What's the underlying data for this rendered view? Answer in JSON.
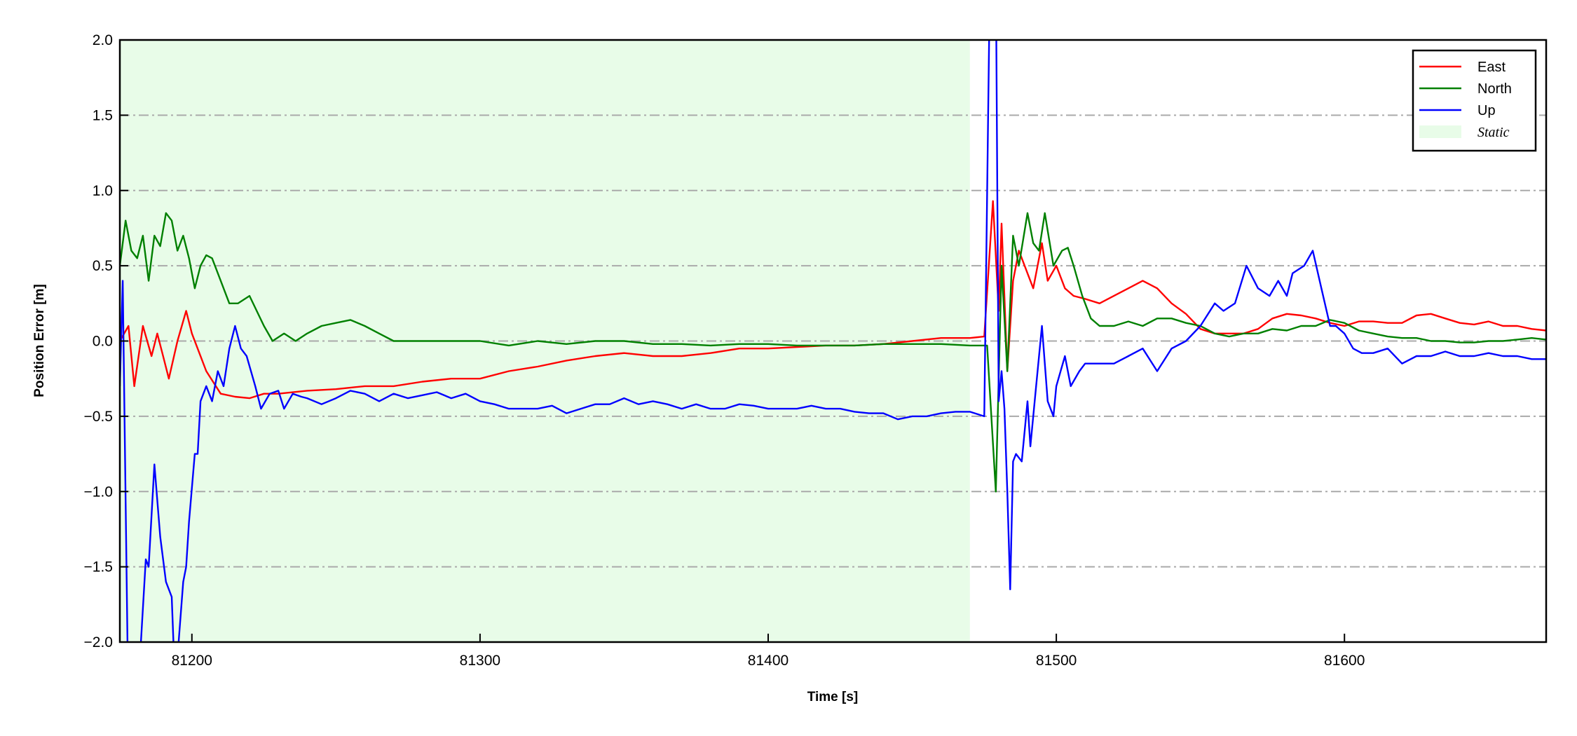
{
  "chart_data": {
    "type": "line",
    "xlabel": "Time [s]",
    "ylabel": "Position Error [m]",
    "xlim": [
      81175,
      81670
    ],
    "ylim": [
      -2.0,
      2.0
    ],
    "xticks": [
      81200,
      81300,
      81400,
      81500,
      81600
    ],
    "xtick_labels": [
      "81200",
      "81300",
      "81400",
      "81500",
      "81600"
    ],
    "yticks": [
      -2.0,
      -1.5,
      -1.0,
      -0.5,
      0.0,
      0.5,
      1.0,
      1.5,
      2.0
    ],
    "ytick_labels": [
      "−2.0",
      "−1.5",
      "−1.0",
      "−0.5",
      "0.0",
      "0.5",
      "1.0",
      "1.5",
      "2.0"
    ],
    "grid": "horizontal dash-dot",
    "legend_position": "top-right",
    "shaded_region": {
      "name": "Static",
      "x_start": 81175,
      "x_end": 81470,
      "color": "#e8fce8"
    },
    "series": [
      {
        "name": "East",
        "color": "#ff0000",
        "x": [
          81175,
          81178,
          81180,
          81183,
          81186,
          81188,
          81190,
          81192,
          81195,
          81198,
          81200,
          81205,
          81210,
          81215,
          81220,
          81225,
          81230,
          81240,
          81250,
          81260,
          81270,
          81280,
          81290,
          81300,
          81310,
          81320,
          81330,
          81340,
          81350,
          81360,
          81370,
          81380,
          81390,
          81400,
          81410,
          81420,
          81430,
          81440,
          81450,
          81460,
          81470,
          81475,
          81478,
          81480,
          81481,
          81483,
          81485,
          81487,
          81490,
          81492,
          81495,
          81497,
          81500,
          81503,
          81506,
          81510,
          81515,
          81520,
          81525,
          81530,
          81535,
          81540,
          81545,
          81550,
          81555,
          81560,
          81565,
          81570,
          81575,
          81580,
          81585,
          81590,
          81595,
          81600,
          81605,
          81610,
          81615,
          81620,
          81625,
          81630,
          81635,
          81640,
          81645,
          81650,
          81655,
          81660,
          81665,
          81670
        ],
        "y": [
          0.0,
          0.1,
          -0.3,
          0.1,
          -0.1,
          0.05,
          -0.1,
          -0.25,
          0.0,
          0.2,
          0.05,
          -0.2,
          -0.35,
          -0.37,
          -0.38,
          -0.35,
          -0.35,
          -0.33,
          -0.32,
          -0.3,
          -0.3,
          -0.27,
          -0.25,
          -0.25,
          -0.2,
          -0.17,
          -0.13,
          -0.1,
          -0.08,
          -0.1,
          -0.1,
          -0.08,
          -0.05,
          -0.05,
          -0.04,
          -0.03,
          -0.03,
          -0.02,
          0.0,
          0.02,
          0.02,
          0.03,
          0.93,
          0.2,
          0.78,
          -0.2,
          0.4,
          0.6,
          0.45,
          0.35,
          0.65,
          0.4,
          0.5,
          0.35,
          0.3,
          0.28,
          0.25,
          0.3,
          0.35,
          0.4,
          0.35,
          0.25,
          0.18,
          0.08,
          0.05,
          0.05,
          0.05,
          0.08,
          0.15,
          0.18,
          0.17,
          0.15,
          0.12,
          0.1,
          0.13,
          0.13,
          0.12,
          0.12,
          0.17,
          0.18,
          0.15,
          0.12,
          0.11,
          0.13,
          0.1,
          0.1,
          0.08,
          0.07
        ]
      },
      {
        "name": "North",
        "color": "#008000",
        "x": [
          81175,
          81177,
          81179,
          81181,
          81183,
          81185,
          81187,
          81189,
          81191,
          81193,
          81195,
          81197,
          81199,
          81201,
          81203,
          81205,
          81207,
          81210,
          81213,
          81216,
          81220,
          81225,
          81228,
          81232,
          81236,
          81240,
          81245,
          81250,
          81255,
          81260,
          81265,
          81270,
          81280,
          81290,
          81300,
          81310,
          81320,
          81330,
          81340,
          81350,
          81360,
          81370,
          81380,
          81390,
          81400,
          81410,
          81420,
          81430,
          81440,
          81450,
          81460,
          81470,
          81476,
          81479,
          81481,
          81483,
          81485,
          81487,
          81490,
          81492,
          81494,
          81496,
          81499,
          81502,
          81504,
          81506,
          81509,
          81512,
          81515,
          81520,
          81525,
          81530,
          81535,
          81540,
          81545,
          81550,
          81555,
          81560,
          81565,
          81570,
          81575,
          81580,
          81585,
          81590,
          81595,
          81600,
          81605,
          81610,
          81615,
          81620,
          81625,
          81630,
          81635,
          81640,
          81645,
          81650,
          81655,
          81660,
          81665,
          81670
        ],
        "y": [
          0.5,
          0.8,
          0.6,
          0.55,
          0.7,
          0.4,
          0.7,
          0.63,
          0.85,
          0.8,
          0.6,
          0.7,
          0.55,
          0.35,
          0.5,
          0.57,
          0.55,
          0.4,
          0.25,
          0.25,
          0.3,
          0.1,
          0.0,
          0.05,
          0.0,
          0.05,
          0.1,
          0.12,
          0.14,
          0.1,
          0.05,
          0.0,
          0.0,
          0.0,
          0.0,
          -0.03,
          0.0,
          -0.02,
          0.0,
          0.0,
          -0.02,
          -0.02,
          -0.03,
          -0.02,
          -0.02,
          -0.03,
          -0.03,
          -0.03,
          -0.02,
          -0.02,
          -0.02,
          -0.03,
          -0.03,
          -1.0,
          0.5,
          -0.2,
          0.7,
          0.5,
          0.85,
          0.65,
          0.6,
          0.85,
          0.5,
          0.6,
          0.62,
          0.5,
          0.3,
          0.15,
          0.1,
          0.1,
          0.13,
          0.1,
          0.15,
          0.15,
          0.12,
          0.1,
          0.05,
          0.03,
          0.05,
          0.05,
          0.08,
          0.07,
          0.1,
          0.1,
          0.14,
          0.12,
          0.07,
          0.05,
          0.03,
          0.02,
          0.02,
          0.0,
          0.0,
          -0.01,
          -0.01,
          0.0,
          0.0,
          0.01,
          0.02,
          0.01
        ]
      },
      {
        "name": "Up",
        "color": "#0000ff",
        "x": [
          81175,
          81176,
          81178,
          81181,
          81182,
          81184,
          81185,
          81187,
          81189,
          81191,
          81193,
          81194,
          81195,
          81197,
          81198,
          81199,
          81201,
          81202,
          81203,
          81205,
          81207,
          81209,
          81211,
          81213,
          81215,
          81217,
          81219,
          81222,
          81224,
          81227,
          81230,
          81232,
          81235,
          81238,
          81240,
          81245,
          81250,
          81255,
          81260,
          81265,
          81270,
          81275,
          81280,
          81285,
          81290,
          81295,
          81300,
          81305,
          81310,
          81315,
          81320,
          81325,
          81330,
          81335,
          81340,
          81345,
          81350,
          81355,
          81360,
          81365,
          81370,
          81375,
          81380,
          81385,
          81390,
          81395,
          81400,
          81405,
          81410,
          81415,
          81420,
          81425,
          81430,
          81435,
          81440,
          81445,
          81450,
          81455,
          81460,
          81465,
          81470,
          81475,
          81477,
          81479,
          81480,
          81481,
          81482,
          81483,
          81484,
          81485,
          81486,
          81488,
          81490,
          81491,
          81493,
          81495,
          81497,
          81499,
          81500,
          81503,
          81505,
          81508,
          81510,
          81515,
          81520,
          81525,
          81530,
          81535,
          81540,
          81545,
          81550,
          81555,
          81558,
          81562,
          81566,
          81570,
          81574,
          81577,
          81580,
          81582,
          81586,
          81589,
          81592,
          81595,
          81597,
          81600,
          81603,
          81606,
          81610,
          81615,
          81620,
          81625,
          81630,
          81635,
          81640,
          81645,
          81650,
          81655,
          81660,
          81665,
          81670
        ],
        "y": [
          -0.3,
          0.4,
          -2.5,
          -2.5,
          -2.1,
          -1.45,
          -1.5,
          -0.82,
          -1.3,
          -1.6,
          -1.7,
          -2.2,
          -2.1,
          -1.6,
          -1.5,
          -1.2,
          -0.75,
          -0.75,
          -0.4,
          -0.3,
          -0.4,
          -0.2,
          -0.3,
          -0.05,
          0.1,
          -0.05,
          -0.1,
          -0.3,
          -0.45,
          -0.35,
          -0.33,
          -0.45,
          -0.35,
          -0.37,
          -0.38,
          -0.42,
          -0.38,
          -0.33,
          -0.35,
          -0.4,
          -0.35,
          -0.38,
          -0.36,
          -0.34,
          -0.38,
          -0.35,
          -0.4,
          -0.42,
          -0.45,
          -0.45,
          -0.45,
          -0.43,
          -0.48,
          -0.45,
          -0.42,
          -0.42,
          -0.38,
          -0.42,
          -0.4,
          -0.42,
          -0.45,
          -0.42,
          -0.45,
          -0.45,
          -0.42,
          -0.43,
          -0.45,
          -0.45,
          -0.45,
          -0.43,
          -0.45,
          -0.45,
          -0.47,
          -0.48,
          -0.48,
          -0.52,
          -0.5,
          -0.5,
          -0.48,
          -0.47,
          -0.47,
          -0.5,
          2.5,
          2.5,
          -0.4,
          -0.2,
          -0.45,
          -1.0,
          -1.65,
          -0.8,
          -0.75,
          -0.8,
          -0.4,
          -0.7,
          -0.3,
          0.1,
          -0.4,
          -0.5,
          -0.3,
          -0.1,
          -0.3,
          -0.2,
          -0.15,
          -0.15,
          -0.15,
          -0.1,
          -0.05,
          -0.2,
          -0.05,
          0.0,
          0.1,
          0.25,
          0.2,
          0.25,
          0.5,
          0.35,
          0.3,
          0.4,
          0.3,
          0.45,
          0.5,
          0.6,
          0.35,
          0.1,
          0.1,
          0.05,
          -0.05,
          -0.08,
          -0.08,
          -0.05,
          -0.15,
          -0.1,
          -0.1,
          -0.07,
          -0.1,
          -0.1,
          -0.08,
          -0.1,
          -0.1,
          -0.12,
          -0.12
        ]
      }
    ]
  }
}
